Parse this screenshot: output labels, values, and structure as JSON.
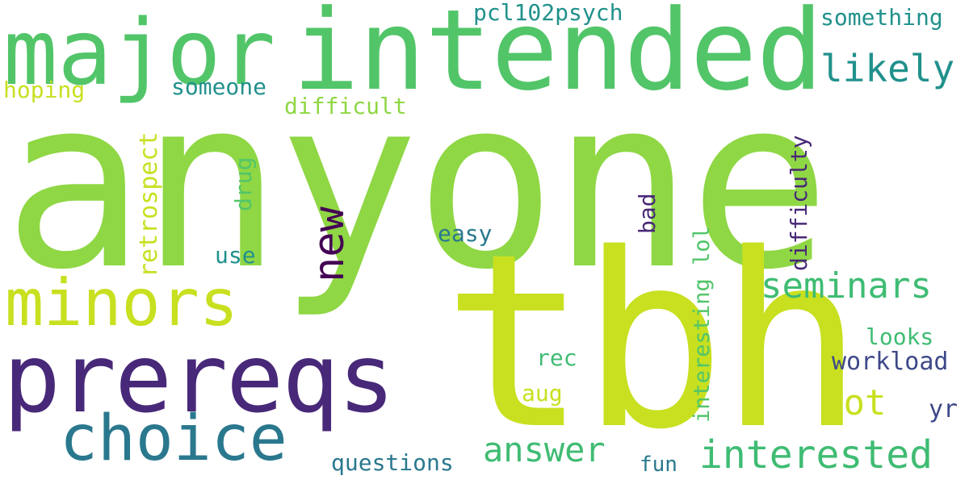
{
  "words": {
    "anyone": "anyone",
    "tbh": "tbh",
    "intended": "intended",
    "major": "major",
    "prereqs": "prereqs",
    "minors": "minors",
    "choice": "choice",
    "seminars": "seminars",
    "interested": "interested",
    "likely": "likely",
    "answer": "answer",
    "lot": "lot",
    "new": "new",
    "pcl102psych": "pcl102psych",
    "something": "something",
    "hoping": "hoping",
    "someone": "someone",
    "difficult": "difficult",
    "retrospect": "retrospect",
    "drug": "drug",
    "use": "use",
    "easy": "easy",
    "bad": "bad",
    "difficulty": "difficulty",
    "interesting_lol": "interesting lol",
    "looks": "looks",
    "workload": "workload",
    "rec": "rec",
    "aug": "aug",
    "yr": "yr",
    "questions": "questions",
    "fun": "fun"
  },
  "colors": {
    "light_green": "#8fd744",
    "yellow_green": "#c8e020",
    "green": "#52c569",
    "teal_green": "#3fbc73",
    "teal": "#21918c",
    "blue_teal": "#2a788e",
    "purple": "#440154",
    "indigo": "#482878",
    "slate": "#3e4989"
  }
}
